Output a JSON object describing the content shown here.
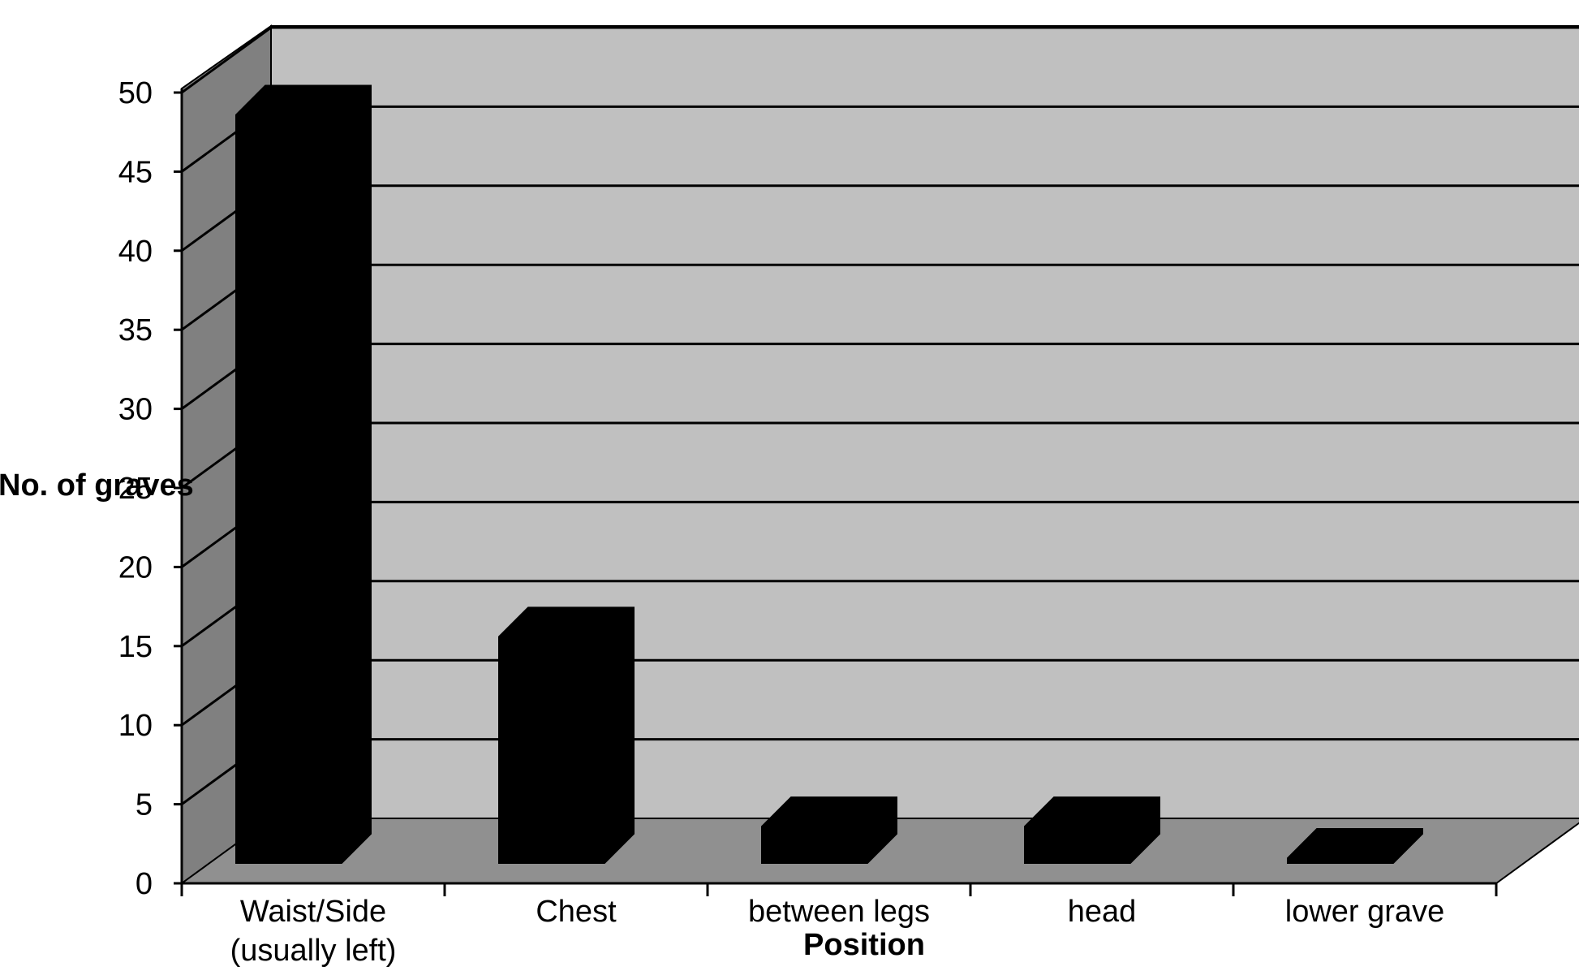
{
  "chart_data": {
    "type": "bar",
    "title": "",
    "xlabel": "Position",
    "ylabel": "No. of graves",
    "categories": [
      "Waist/Side\n(usually left)",
      "Chest",
      "between legs",
      "head",
      "lower grave"
    ],
    "values": [
      49,
      16,
      4,
      4,
      2
    ],
    "ylim": [
      0,
      50
    ],
    "yticks": [
      0,
      5,
      10,
      15,
      20,
      25,
      30,
      35,
      40,
      45,
      50
    ],
    "grid": true,
    "legend": "none",
    "style": "3d",
    "colors": {
      "bar": "#000000",
      "back_wall": "#c0c0c0",
      "side_wall": "#808080",
      "floor": "#909090",
      "gridline": "#000000"
    }
  }
}
